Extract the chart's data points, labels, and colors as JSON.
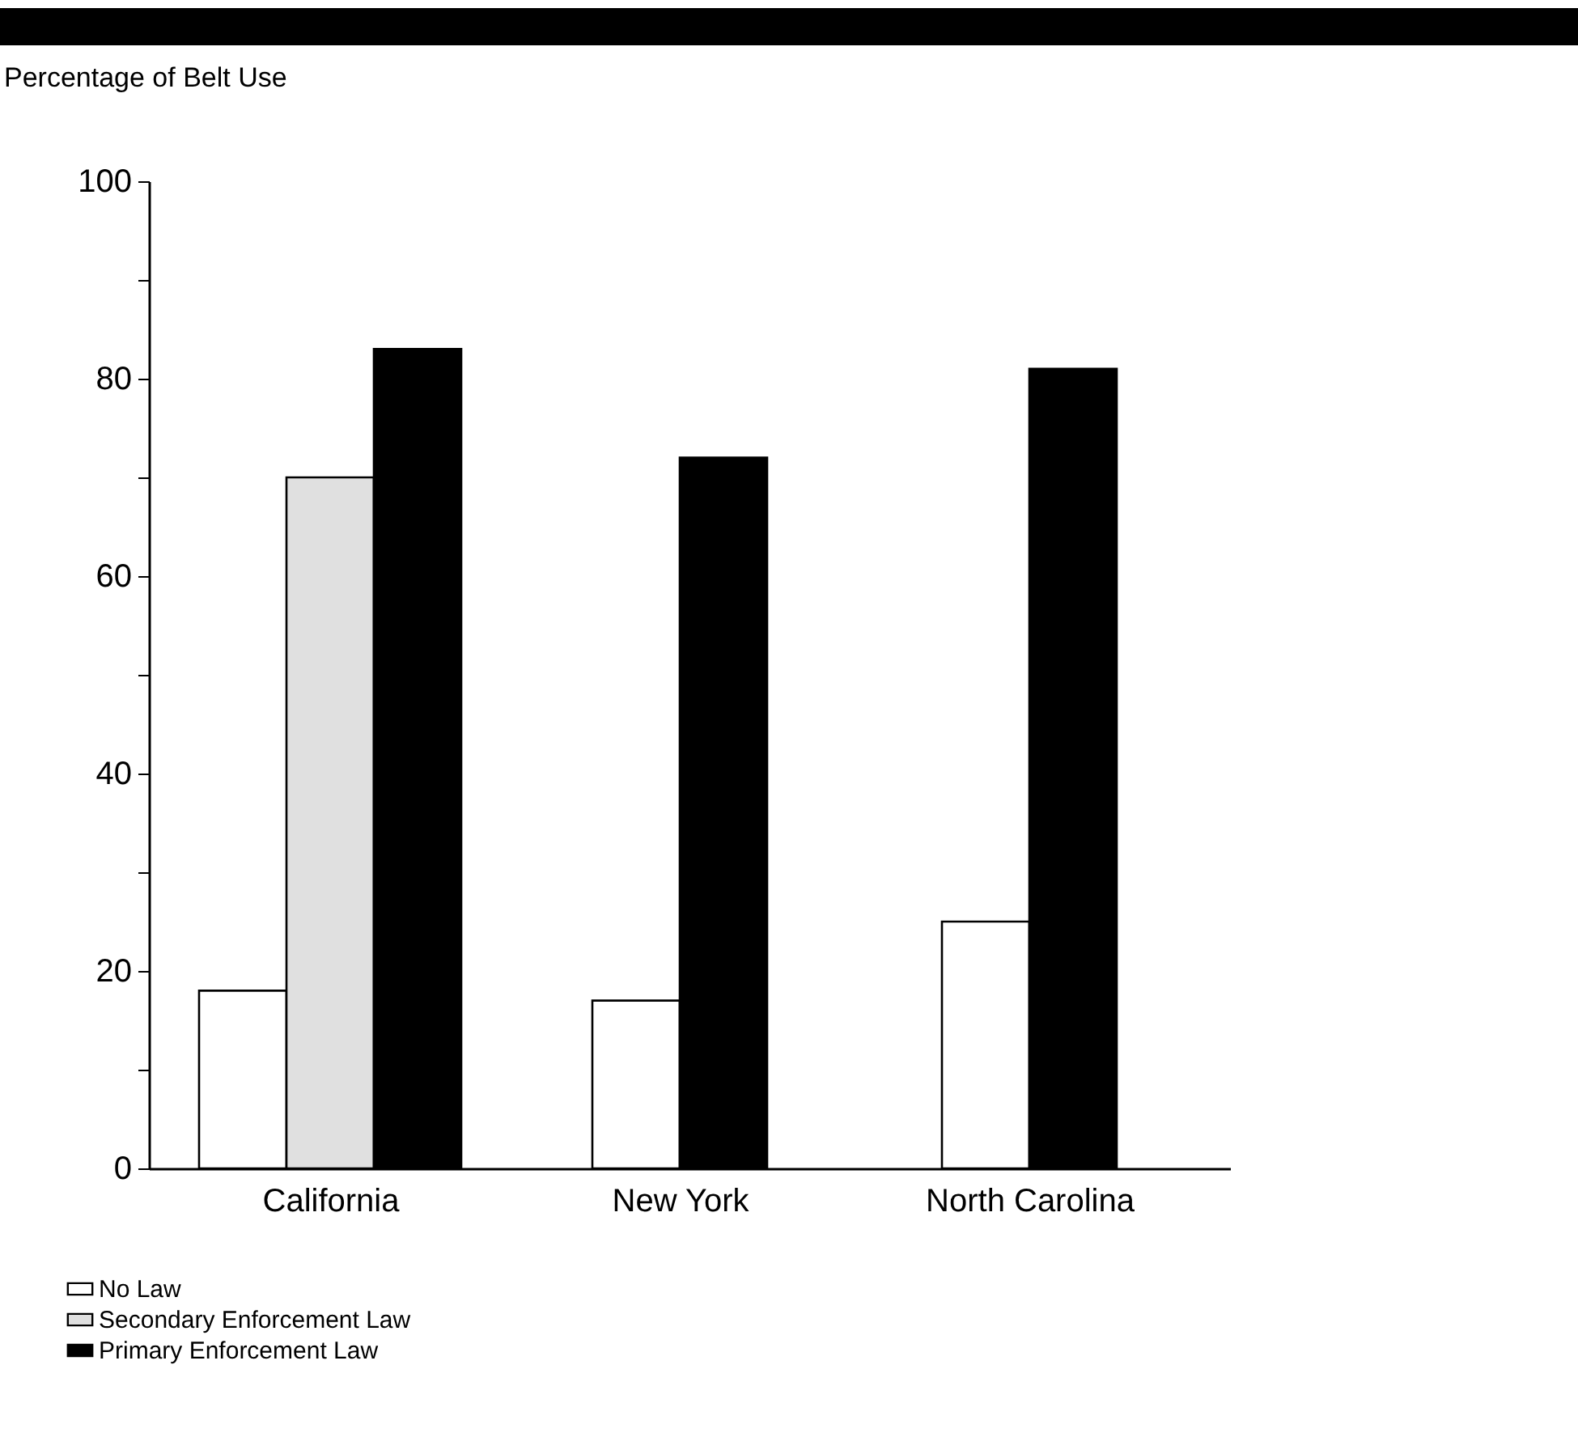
{
  "chart_data": {
    "type": "bar",
    "ylabel": "Percentage of Belt Use",
    "categories": [
      "California",
      "New York",
      "North Carolina"
    ],
    "series": [
      {
        "name": "No Law",
        "color": "#ffffff",
        "values": [
          18,
          17,
          25
        ]
      },
      {
        "name": "Secondary Enforcement Law",
        "color": "#e0e0e0",
        "values": [
          70,
          null,
          null
        ]
      },
      {
        "name": "Primary Enforcement Law",
        "color": "#000000",
        "values": [
          83,
          72,
          81
        ]
      }
    ],
    "ylim": [
      0,
      100
    ],
    "yticks": [
      0,
      {
        "value": 10,
        "label": null
      },
      20,
      {
        "value": 30,
        "label": null
      },
      40,
      {
        "value": 50,
        "label": null
      },
      60,
      {
        "value": 70,
        "label": null
      },
      80,
      {
        "value": 90,
        "label": null
      },
      100
    ],
    "grid": false,
    "legend": "bottom left"
  }
}
